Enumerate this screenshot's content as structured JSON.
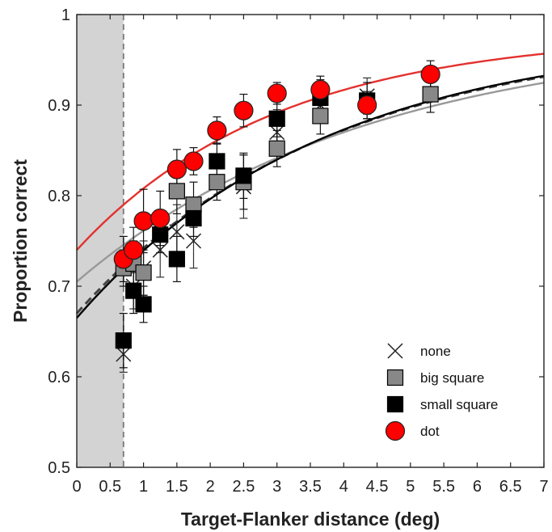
{
  "chart_data": {
    "type": "scatter",
    "xlabel": "Target-Flanker distance (deg)",
    "ylabel": "Proportion correct",
    "xlim": [
      0,
      7
    ],
    "ylim": [
      0.5,
      1.0
    ],
    "xticks": [
      0,
      0.5,
      1,
      1.5,
      2,
      2.5,
      3,
      3.5,
      4,
      4.5,
      5,
      5.5,
      6,
      6.5,
      7
    ],
    "xtick_labels": [
      "0",
      "0.5",
      "1",
      "1.5",
      "2",
      "2.5",
      "3",
      "3.5",
      "4",
      "4.5",
      "5",
      "5.5",
      "6",
      "6.5",
      "7"
    ],
    "yticks": [
      0.5,
      0.6,
      0.7,
      0.8,
      0.9,
      1.0
    ],
    "ytick_labels": [
      "0.5",
      "0.6",
      "0.7",
      "0.8",
      "0.9",
      "1"
    ],
    "grid": false,
    "legend_position": "bottom-right",
    "shaded_region": {
      "x": [
        0,
        0.7
      ],
      "color": "#d3d3d3"
    },
    "vertical_line": {
      "x": 0.7,
      "style": "dashed",
      "color": "#777777"
    },
    "series": [
      {
        "name": "none",
        "marker": "x",
        "color": "#222222",
        "fit_color": "#444444",
        "fit_dashed": true,
        "fit_intercept": 0.67,
        "fit_slope": 0.082,
        "fit_asymptote": 0.98,
        "points": [
          {
            "x": 0.7,
            "y": 0.625,
            "err": 0.02
          },
          {
            "x": 0.85,
            "y": 0.7,
            "err": 0.025
          },
          {
            "x": 1.0,
            "y": 0.72,
            "err": 0.03
          },
          {
            "x": 1.25,
            "y": 0.74,
            "err": 0.03
          },
          {
            "x": 1.5,
            "y": 0.76,
            "err": 0.03
          },
          {
            "x": 1.75,
            "y": 0.75,
            "err": 0.03
          },
          {
            "x": 2.5,
            "y": 0.81,
            "err": 0.035
          },
          {
            "x": 3.0,
            "y": 0.87,
            "err": 0.025
          },
          {
            "x": 3.65,
            "y": 0.9,
            "err": 0.02
          },
          {
            "x": 4.35,
            "y": 0.91,
            "err": 0.02
          }
        ]
      },
      {
        "name": "big square",
        "marker": "square",
        "color": "#888888",
        "fit_color": "#999999",
        "fit_dashed": false,
        "fit_intercept": 0.705,
        "fit_slope": 0.063,
        "fit_asymptote": 0.98,
        "points": [
          {
            "x": 0.7,
            "y": 0.72,
            "err": 0.02
          },
          {
            "x": 0.85,
            "y": 0.725,
            "err": 0.025
          },
          {
            "x": 1.0,
            "y": 0.715,
            "err": 0.025
          },
          {
            "x": 1.5,
            "y": 0.805,
            "err": 0.025
          },
          {
            "x": 1.75,
            "y": 0.79,
            "err": 0.025
          },
          {
            "x": 2.1,
            "y": 0.815,
            "err": 0.02
          },
          {
            "x": 2.5,
            "y": 0.815,
            "err": 0.03
          },
          {
            "x": 3.0,
            "y": 0.852,
            "err": 0.02
          },
          {
            "x": 3.65,
            "y": 0.888,
            "err": 0.02
          },
          {
            "x": 5.3,
            "y": 0.912,
            "err": 0.02
          }
        ]
      },
      {
        "name": "small square",
        "marker": "square",
        "color": "#000000",
        "fit_color": "#000000",
        "fit_dashed": false,
        "fit_intercept": 0.665,
        "fit_slope": 0.085,
        "fit_asymptote": 0.98,
        "points": [
          {
            "x": 0.7,
            "y": 0.64,
            "err": 0.03
          },
          {
            "x": 0.85,
            "y": 0.695,
            "err": 0.025
          },
          {
            "x": 1.0,
            "y": 0.68,
            "err": 0.02
          },
          {
            "x": 1.25,
            "y": 0.757,
            "err": 0.02
          },
          {
            "x": 1.5,
            "y": 0.73,
            "err": 0.025
          },
          {
            "x": 1.75,
            "y": 0.775,
            "err": 0.02
          },
          {
            "x": 2.1,
            "y": 0.838,
            "err": 0.02
          },
          {
            "x": 2.5,
            "y": 0.822,
            "err": 0.025
          },
          {
            "x": 3.0,
            "y": 0.885,
            "err": 0.02
          },
          {
            "x": 3.65,
            "y": 0.908,
            "err": 0.02
          },
          {
            "x": 4.35,
            "y": 0.905,
            "err": 0.02
          }
        ]
      },
      {
        "name": "dot",
        "marker": "circle",
        "color": "#ff0000",
        "fit_color": "#e3312e",
        "fit_dashed": false,
        "fit_intercept": 0.74,
        "fit_slope": 0.08,
        "fit_asymptote": 0.98,
        "points": [
          {
            "x": 0.7,
            "y": 0.73,
            "err": 0.025
          },
          {
            "x": 0.85,
            "y": 0.74,
            "err": 0.025
          },
          {
            "x": 1.0,
            "y": 0.772,
            "err": 0.035
          },
          {
            "x": 1.25,
            "y": 0.775,
            "err": 0.03
          },
          {
            "x": 1.5,
            "y": 0.829,
            "err": 0.022
          },
          {
            "x": 1.75,
            "y": 0.838,
            "err": 0.015
          },
          {
            "x": 2.1,
            "y": 0.872,
            "err": 0.015
          },
          {
            "x": 2.5,
            "y": 0.894,
            "err": 0.018
          },
          {
            "x": 3.0,
            "y": 0.913,
            "err": 0.012
          },
          {
            "x": 3.65,
            "y": 0.917,
            "err": 0.015
          },
          {
            "x": 4.35,
            "y": 0.9,
            "err": 0.015
          },
          {
            "x": 5.3,
            "y": 0.934,
            "err": 0.015
          }
        ]
      }
    ]
  }
}
